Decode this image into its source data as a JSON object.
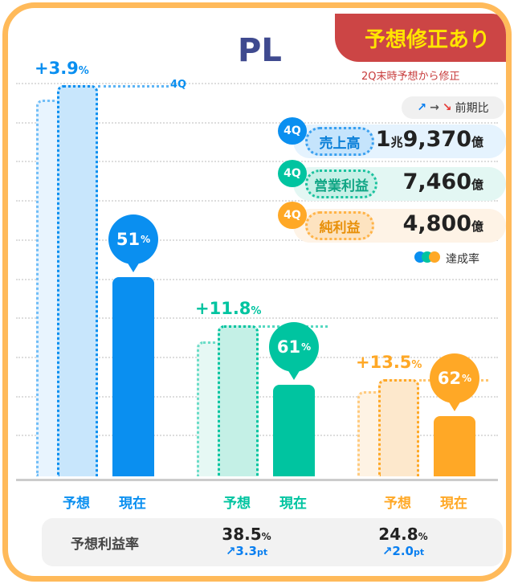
{
  "title": "PL",
  "badge": "予想修正あり",
  "badge_sub": "2Q末時予想から修正",
  "trend_legend": {
    "up": "↗",
    "flat": "→",
    "down": "↘",
    "label": "前期比"
  },
  "achievement_legend": "達成率",
  "colors": {
    "sales": "#0A8FF0",
    "op": "#00C4A0",
    "net": "#FFA826",
    "border": "#FFBA5A",
    "badge": "#CC4545"
  },
  "kpis": [
    {
      "q": "4Q",
      "name": "売上高",
      "value_main": "1",
      "value_unit1": "兆",
      "value": "9,370",
      "unit": "億"
    },
    {
      "q": "4Q",
      "name": "営業利益",
      "value": "7,460",
      "unit": "億"
    },
    {
      "q": "4Q",
      "name": "純利益",
      "value": "4,800",
      "unit": "億"
    }
  ],
  "chart_data": {
    "type": "bar",
    "unit": "億円",
    "categories": [
      "売上高",
      "営業利益",
      "純利益"
    ],
    "series": [
      {
        "name": "2Q末時予想",
        "values": [
          18643,
          6673,
          4229
        ]
      },
      {
        "name": "予想",
        "values": [
          19370,
          7460,
          4800
        ]
      },
      {
        "name": "現在",
        "achievement_pct": [
          51,
          61,
          62
        ]
      }
    ],
    "revisions": [
      "+3.9",
      "+11.8",
      "+13.5"
    ],
    "revision_unit": "%",
    "period_marker": "4Q",
    "x_labels": [
      "予想",
      "現在"
    ],
    "achievement_unit": "%"
  },
  "margin": {
    "label": "予想利益率",
    "items": [
      {
        "value": "38.5",
        "unit": "%",
        "change": "3.3",
        "change_unit": "pt",
        "arrow": "↗"
      },
      {
        "value": "24.8",
        "unit": "%",
        "change": "2.0",
        "change_unit": "pt",
        "arrow": "↗"
      }
    ]
  }
}
